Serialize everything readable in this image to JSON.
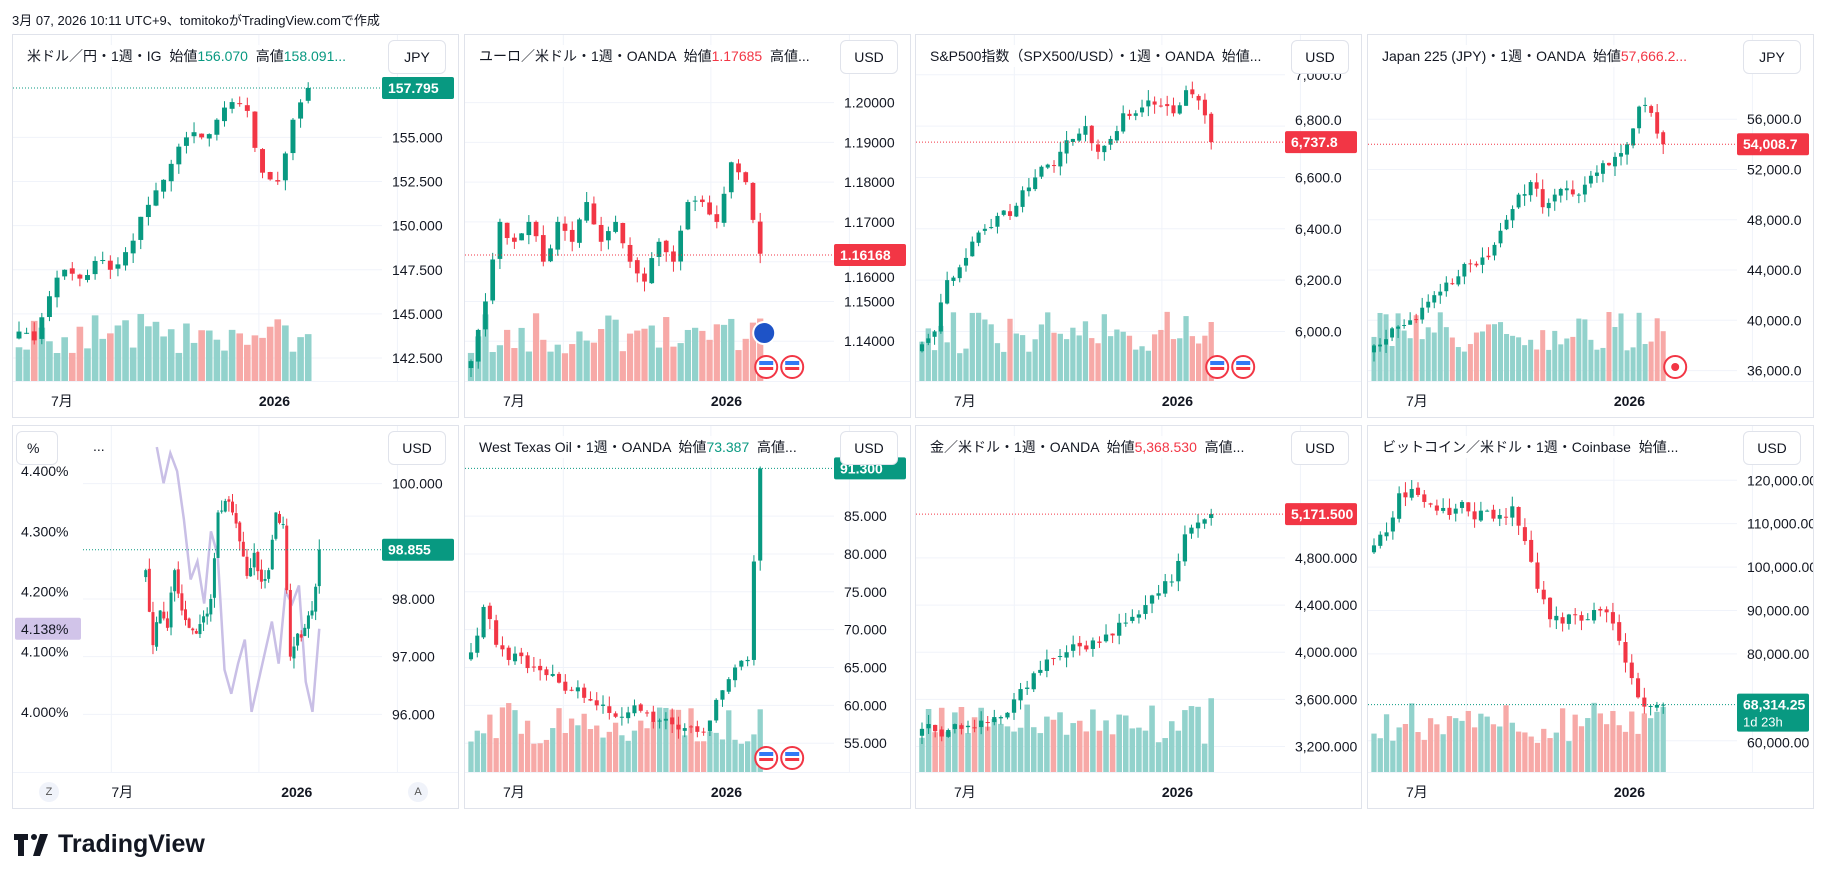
{
  "caption": "3月 07, 2026 10:11 UTC+9、tomitokoがTradingView.comで作成",
  "brand": "TradingView",
  "colors": {
    "up": "#089981",
    "down": "#f23645",
    "line": "#c9bfe6"
  },
  "charts": [
    {
      "header": [
        {
          "t": "米ドル／円・1週・IG  始値"
        },
        {
          "t": "156.070",
          "c": "up"
        },
        {
          "t": "  高値"
        },
        {
          "t": "158.091...",
          "c": "up"
        }
      ],
      "currency": "JPY",
      "yticks": [
        "155.000",
        "152.500",
        "150.000",
        "147.500",
        "145.000",
        "142.500"
      ],
      "ylim": [
        141.2,
        160.8
      ],
      "price": {
        "label": "157.795",
        "dir": "up"
      },
      "xlabels": [
        "7月",
        "2026"
      ],
      "closes": [
        144,
        143.5,
        146,
        147.5,
        147,
        148,
        147.5,
        148.5,
        150.5,
        152,
        153.5,
        155,
        155,
        156,
        157,
        156.5,
        153,
        152.5,
        156,
        157.8
      ]
    },
    {
      "header": [
        {
          "t": "ユーロ／米ドル・1週・OANDA  始値"
        },
        {
          "t": "1.17685",
          "c": "down"
        },
        {
          "t": "  高値..."
        }
      ],
      "currency": "USD",
      "yticks": [
        "1.20000",
        "1.19000",
        "1.18000",
        "1.17000",
        "1.16000",
        "1.15000",
        "1.14000"
      ],
      "ylim": [
        1.13,
        1.217
      ],
      "price": {
        "label": "1.16168",
        "dir": "down"
      },
      "xlabels": [
        "7月",
        "2026"
      ],
      "closes": [
        1.135,
        1.15,
        1.17,
        1.165,
        1.17,
        1.16,
        1.17,
        1.165,
        1.175,
        1.165,
        1.17,
        1.16,
        1.155,
        1.165,
        1.16,
        1.175,
        1.175,
        1.17,
        1.185,
        1.18,
        1.162
      ]
    },
    {
      "header": [
        {
          "t": "S&P500指数（SPX500/USD）・1週・OANDA  始値..."
        }
      ],
      "currency": "USD",
      "yticks": [
        "7,000.0",
        "6,800.0",
        "6,600.0",
        "6,400.0",
        "6,200.0",
        "6,000.0"
      ],
      "ylim": [
        5807,
        7155
      ],
      "price": {
        "label": "6,737.8",
        "dir": "down"
      },
      "xlabels": [
        "7月",
        "2026"
      ],
      "closes": [
        5950,
        6000,
        6200,
        6250,
        6350,
        6400,
        6450,
        6450,
        6550,
        6600,
        6650,
        6700,
        6750,
        6800,
        6700,
        6750,
        6850,
        6850,
        6900,
        6880,
        6850,
        6940,
        6900,
        6737.8
      ]
    },
    {
      "header": [
        {
          "t": "Japan 225 (JPY)・1週・OANDA  始値"
        },
        {
          "t": "57,666.2...",
          "c": "down"
        }
      ],
      "currency": "JPY",
      "yticks": [
        "56,000.0",
        "52,000.0",
        "48,000.0",
        "44,000.0",
        "40,000.0",
        "36,000.0"
      ],
      "ylim": [
        35170,
        62700
      ],
      "price": {
        "label": "54,008.7",
        "dir": "down"
      },
      "xlabels": [
        "7月",
        "2026"
      ],
      "closes": [
        38000,
        38500,
        39500,
        40000,
        41000,
        42000,
        43000,
        43500,
        44500,
        45000,
        46000,
        48000,
        50000,
        51000,
        49000,
        50000,
        50500,
        50000,
        51500,
        52500,
        53000,
        54000,
        57000,
        56500,
        54008.7
      ]
    },
    {
      "header_pct": "%",
      "header_dots": "...",
      "currency": "USD",
      "yticks": [
        "100.000",
        "98.000",
        "97.000",
        "96.000"
      ],
      "ylim": [
        95.0,
        101.0
      ],
      "left_yticks": [
        "4.400%",
        "4.300%",
        "4.200%",
        "4.100%",
        "4.000%"
      ],
      "left_ylim": [
        3.9,
        4.475
      ],
      "left_price": "4.138%",
      "price": {
        "label": "98.855",
        "dir": "up"
      },
      "xlabels": [
        "7月",
        "2026"
      ],
      "buttons": [
        "Z",
        "A"
      ],
      "closes": [
        98.5,
        97.2,
        97.8,
        97.5,
        98.5,
        97.8,
        97.5,
        97.4,
        97.7,
        98,
        99.5,
        99.7,
        99.5,
        99,
        98.4,
        98.8,
        98.3,
        98.5,
        99.5,
        99.3,
        97.0,
        97.4,
        97.5,
        97.8,
        98.855
      ],
      "line": [
        4.44,
        4.38,
        4.43,
        4.4,
        4.32,
        4.22,
        4.25,
        4.18,
        4.3,
        4.26,
        4.07,
        4.03,
        4.08,
        4.12,
        4.0,
        4.05,
        4.1,
        4.15,
        4.08,
        4.2,
        4.18,
        4.21,
        4.05,
        4.0,
        4.138
      ]
    },
    {
      "header": [
        {
          "t": "West Texas Oil・1週・OANDA  始値"
        },
        {
          "t": "73.387",
          "c": "up"
        },
        {
          "t": "  高値..."
        }
      ],
      "currency": "USD",
      "yticks": [
        "85.000",
        "80.000",
        "75.000",
        "70.000",
        "65.000",
        "60.000",
        "55.000"
      ],
      "ylim": [
        51.2,
        96.9
      ],
      "price": {
        "label": "91.300",
        "dir": "up"
      },
      "xlabels": [
        "7月",
        "2026"
      ],
      "closes": [
        67,
        73,
        68,
        66,
        66.5,
        65,
        64,
        63,
        62,
        61,
        60,
        59,
        58.5,
        60,
        59,
        58,
        57.5,
        57,
        56.5,
        58,
        62,
        65,
        66,
        91.3
      ]
    },
    {
      "header": [
        {
          "t": "金／米ドル・1週・OANDA  始値"
        },
        {
          "t": "5,368.530",
          "c": "down"
        },
        {
          "t": "  高値..."
        }
      ],
      "currency": "USD",
      "yticks": [
        "4,800.000",
        "4,400.000",
        "4,000.000",
        "3,600.000",
        "3,200.000"
      ],
      "ylim": [
        2984,
        5919
      ],
      "price": {
        "label": "5,171.500",
        "dir": "down"
      },
      "xlabels": [
        "7月",
        "2026"
      ],
      "closes": [
        3350,
        3330,
        3340,
        3350,
        3360,
        3400,
        3450,
        3600,
        3700,
        3850,
        3950,
        4000,
        4050,
        4100,
        4150,
        4250,
        4300,
        4400,
        4500,
        4600,
        5000,
        5100,
        5171.5
      ]
    },
    {
      "header": [
        {
          "t": "ビットコイン／米ドル・1週・Coinbase  始値..."
        }
      ],
      "currency": "USD",
      "yticks": [
        "120,000.00",
        "110,000.00",
        "100,000.00",
        "90,000.00",
        "80,000.00",
        "60,000.00"
      ],
      "ylim": [
        52800,
        132500
      ],
      "price": {
        "label": "68,314.25",
        "dir": "up",
        "countdown": "1d 23h"
      },
      "xlabels": [
        "7月",
        "2026"
      ],
      "closes": [
        105000,
        108000,
        117000,
        118000,
        115000,
        113000,
        112000,
        115000,
        111000,
        113000,
        112000,
        114000,
        106000,
        95000,
        88000,
        87000,
        89000,
        88000,
        90000,
        87000,
        78000,
        70000,
        68000,
        68314.25
      ]
    }
  ]
}
